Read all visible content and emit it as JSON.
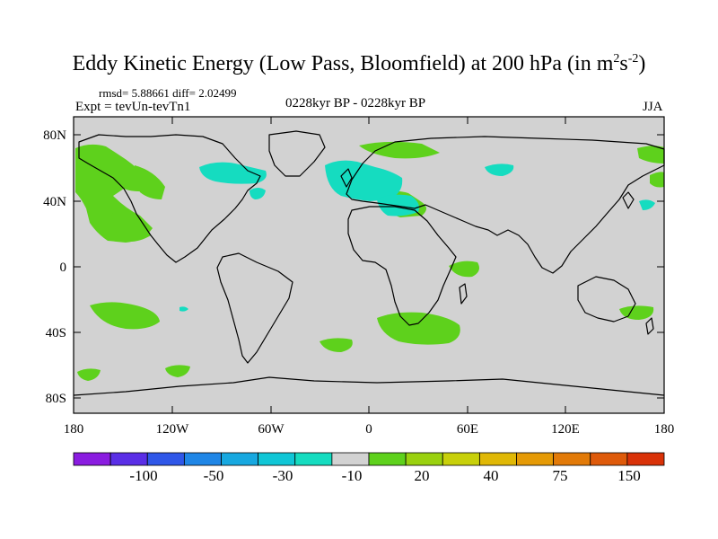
{
  "title": "Eddy Kinetic Energy (Low Pass, Bloomfield) at 200 hPa (in m",
  "title_unit_sup1": "2",
  "title_unit_mid": "s",
  "title_unit_sup2": "-2",
  "title_close": ")",
  "stats": "rmsd= 5.88661 diff= 2.02499",
  "expt": "Expt = tevUn-tevTn1",
  "period": "0228kyr BP - 0228kyr BP",
  "season": "JJA",
  "lat_labels": [
    "80N",
    "40N",
    "0",
    "40S",
    "80S"
  ],
  "lon_labels": [
    "180",
    "120W",
    "60W",
    "0",
    "60E",
    "120E",
    "180"
  ],
  "colorbar": {
    "colors": [
      "#8a1ce0",
      "#5a2ee6",
      "#2f57e8",
      "#1f86e6",
      "#17a8e0",
      "#10c6d6",
      "#15dcc0",
      "#d2d2d2",
      "#5ed11c",
      "#9ad10f",
      "#c8d00a",
      "#e0b806",
      "#e59a06",
      "#e27a08",
      "#de5a0a",
      "#d93208"
    ],
    "labels": [
      "-100",
      "-50",
      "-30",
      "-10",
      "20",
      "40",
      "75",
      "150"
    ]
  },
  "colors": {
    "ocean": "#d2d2d2",
    "positive": "#5ed11c",
    "negative": "#15dcc0"
  }
}
